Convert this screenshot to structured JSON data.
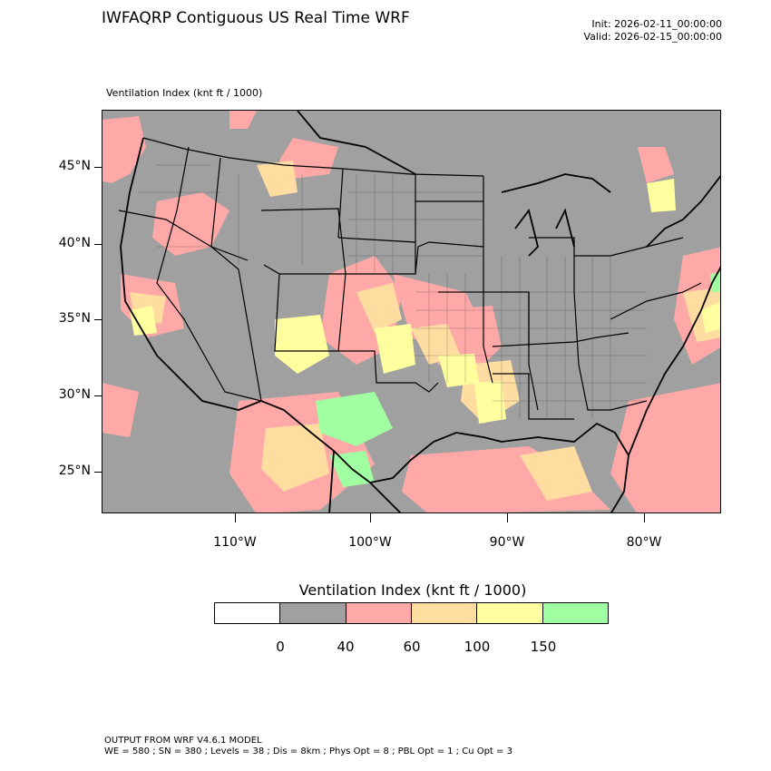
{
  "header": {
    "title": "IWFAQRP Contiguous US Real Time WRF",
    "init": "Init: 2026-02-11_00:00:00",
    "valid": "Valid: 2026-02-15_00:00:00",
    "field_label": "Ventilation Index   (knt ft / 1000)"
  },
  "axes": {
    "lat_labels": [
      "45°N",
      "40°N",
      "35°N",
      "30°N",
      "25°N"
    ],
    "lon_labels": [
      "110°W",
      "100°W",
      "90°W",
      "80°W"
    ]
  },
  "colorbar": {
    "title": "Ventilation Index  (knt ft / 1000)",
    "colors": [
      "#ffffff",
      "#a0a0a0",
      "#ffa8a8",
      "#ffdda0",
      "#ffff9f",
      "#a0ffa0"
    ],
    "labels": [
      "0",
      "40",
      "60",
      "100",
      "150"
    ]
  },
  "map_style": {
    "ocean": "#a0a0a0",
    "land": "#a0a0a0",
    "boundary": "#000000"
  },
  "footer": {
    "line1": "OUTPUT FROM WRF V4.6.1 MODEL",
    "line2": "WE = 580 ; SN = 380 ; Levels = 38 ; Dis = 8km ; Phys Opt = 8 ; PBL Opt = 1 ; Cu Opt = 3"
  }
}
